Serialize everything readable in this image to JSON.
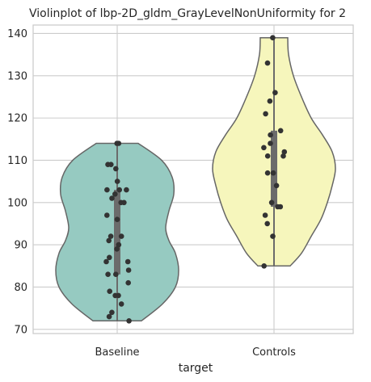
{
  "chart_data": {
    "type": "violin",
    "title": "Violinplot of lbp-2D_gldm_GrayLevelNonUniformity for 2",
    "xlabel": "target",
    "ylabel": "",
    "ylim": [
      69,
      142
    ],
    "yticks": [
      70,
      80,
      90,
      100,
      110,
      120,
      130,
      140
    ],
    "grid": true,
    "categories": [
      "Baseline",
      "Controls"
    ],
    "colors": [
      "#96cac1",
      "#f6f6bc"
    ],
    "violin_edge_color": "#666666",
    "point_color": "#333333",
    "series": [
      {
        "category": "Baseline",
        "min": 72,
        "max": 114,
        "q1": 83,
        "q3": 103,
        "points": [
          114,
          114,
          109,
          109,
          108,
          105,
          103,
          103,
          103,
          102,
          101,
          100,
          100,
          97,
          96,
          92,
          92,
          91,
          90,
          89,
          87,
          86,
          86,
          84,
          83,
          83,
          81,
          79,
          78,
          78,
          76,
          74,
          73,
          72
        ],
        "density_profile": [
          {
            "y": 72,
            "w": 0.3
          },
          {
            "y": 76,
            "w": 0.56
          },
          {
            "y": 80,
            "w": 0.72
          },
          {
            "y": 84,
            "w": 0.76
          },
          {
            "y": 88,
            "w": 0.72
          },
          {
            "y": 91,
            "w": 0.64
          },
          {
            "y": 94,
            "w": 0.6
          },
          {
            "y": 98,
            "w": 0.64
          },
          {
            "y": 102,
            "w": 0.7
          },
          {
            "y": 106,
            "w": 0.68
          },
          {
            "y": 110,
            "w": 0.55
          },
          {
            "y": 114,
            "w": 0.26
          }
        ]
      },
      {
        "category": "Controls",
        "min": 85,
        "max": 139,
        "q1": 99,
        "q3": 117,
        "points": [
          139,
          133,
          126,
          124,
          121,
          117,
          116,
          114,
          113,
          112,
          111,
          111,
          107,
          107,
          104,
          100,
          99,
          99,
          97,
          95,
          92,
          85
        ],
        "density_profile": [
          {
            "y": 85,
            "w": 0.2
          },
          {
            "y": 88,
            "w": 0.34
          },
          {
            "y": 92,
            "w": 0.46
          },
          {
            "y": 96,
            "w": 0.58
          },
          {
            "y": 100,
            "w": 0.66
          },
          {
            "y": 104,
            "w": 0.72
          },
          {
            "y": 108,
            "w": 0.76
          },
          {
            "y": 112,
            "w": 0.72
          },
          {
            "y": 116,
            "w": 0.6
          },
          {
            "y": 120,
            "w": 0.46
          },
          {
            "y": 125,
            "w": 0.34
          },
          {
            "y": 130,
            "w": 0.24
          },
          {
            "y": 135,
            "w": 0.18
          },
          {
            "y": 139,
            "w": 0.17
          }
        ]
      }
    ]
  }
}
